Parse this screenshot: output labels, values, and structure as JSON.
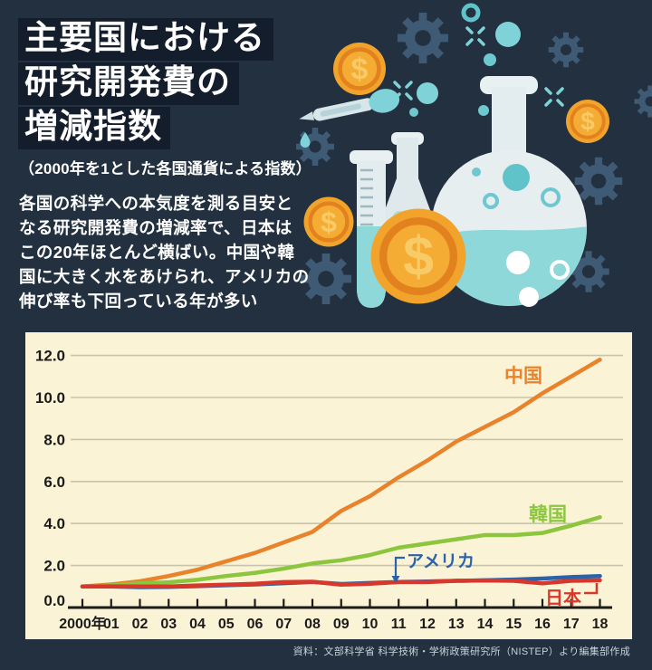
{
  "header": {
    "title_lines": [
      "主要国における",
      "研究開発費の",
      "増減指数"
    ],
    "subtitle": "（2000年を1とした各国通貨による指数）",
    "body_lines": [
      "各国の科学への本気度を測る目安と",
      "なる研究開発費の増減率で、日本は",
      "この20年ほとんど横ばい。中国や韓",
      "国に大きく水をあけられ、アメリカの",
      "伸び率も下回っている年が多い"
    ]
  },
  "illustration": {
    "coin_symbol": "$",
    "icons": [
      "gear-icon",
      "coin-dollar-icon",
      "sparkle-icon",
      "bubble-icon",
      "dropper-icon",
      "drop-icon",
      "test-tube-icon",
      "erlenmeyer-flask-icon",
      "round-flask-icon"
    ]
  },
  "chart_data": {
    "type": "line",
    "title": "主要国における研究開発費の増減指数",
    "xlabel": "",
    "ylabel": "",
    "ylim": [
      0,
      12
    ],
    "grid": true,
    "legend_position": "inline-labels",
    "x_labels": [
      "2000年",
      "01",
      "02",
      "03",
      "04",
      "05",
      "06",
      "07",
      "08",
      "09",
      "10",
      "11",
      "12",
      "13",
      "14",
      "15",
      "16",
      "17",
      "18"
    ],
    "yticks": [
      0,
      2,
      4,
      6,
      8,
      10,
      12
    ],
    "ytick_labels": [
      "0.0",
      "2.0",
      "4.0",
      "6.0",
      "8.0",
      "10.0",
      "12.0"
    ],
    "series": [
      {
        "name": "中国",
        "color": "#e8822b",
        "values": [
          1.0,
          1.1,
          1.25,
          1.5,
          1.8,
          2.2,
          2.6,
          3.1,
          3.6,
          4.6,
          5.3,
          6.2,
          7.0,
          7.9,
          8.6,
          9.3,
          10.2,
          11.0,
          11.8
        ]
      },
      {
        "name": "韓国",
        "color": "#8cc63f",
        "values": [
          1.0,
          1.05,
          1.15,
          1.2,
          1.32,
          1.5,
          1.65,
          1.85,
          2.1,
          2.25,
          2.5,
          2.85,
          3.05,
          3.25,
          3.45,
          3.45,
          3.55,
          3.9,
          4.3
        ]
      },
      {
        "name": "アメリカ",
        "color": "#2b62a8",
        "values": [
          1.0,
          1.0,
          0.97,
          0.98,
          1.02,
          1.06,
          1.1,
          1.16,
          1.22,
          1.12,
          1.17,
          1.22,
          1.24,
          1.27,
          1.3,
          1.33,
          1.38,
          1.45,
          1.5
        ]
      },
      {
        "name": "日本",
        "color": "#d8382c",
        "values": [
          1.0,
          1.01,
          1.0,
          1.0,
          1.05,
          1.09,
          1.13,
          1.21,
          1.23,
          1.09,
          1.13,
          1.21,
          1.21,
          1.27,
          1.29,
          1.27,
          1.15,
          1.27,
          1.3
        ]
      }
    ]
  },
  "source": "資料：文部科学省 科学技術・学術政策研究所（NISTEP）より編集部作成",
  "colors": {
    "background": "#22303f",
    "title_box": "#141d2b",
    "panel": "#fbf3d6",
    "gridline": "#c8c3ab",
    "axis": "#1b1b1b",
    "source_text": "#c9d2da"
  }
}
